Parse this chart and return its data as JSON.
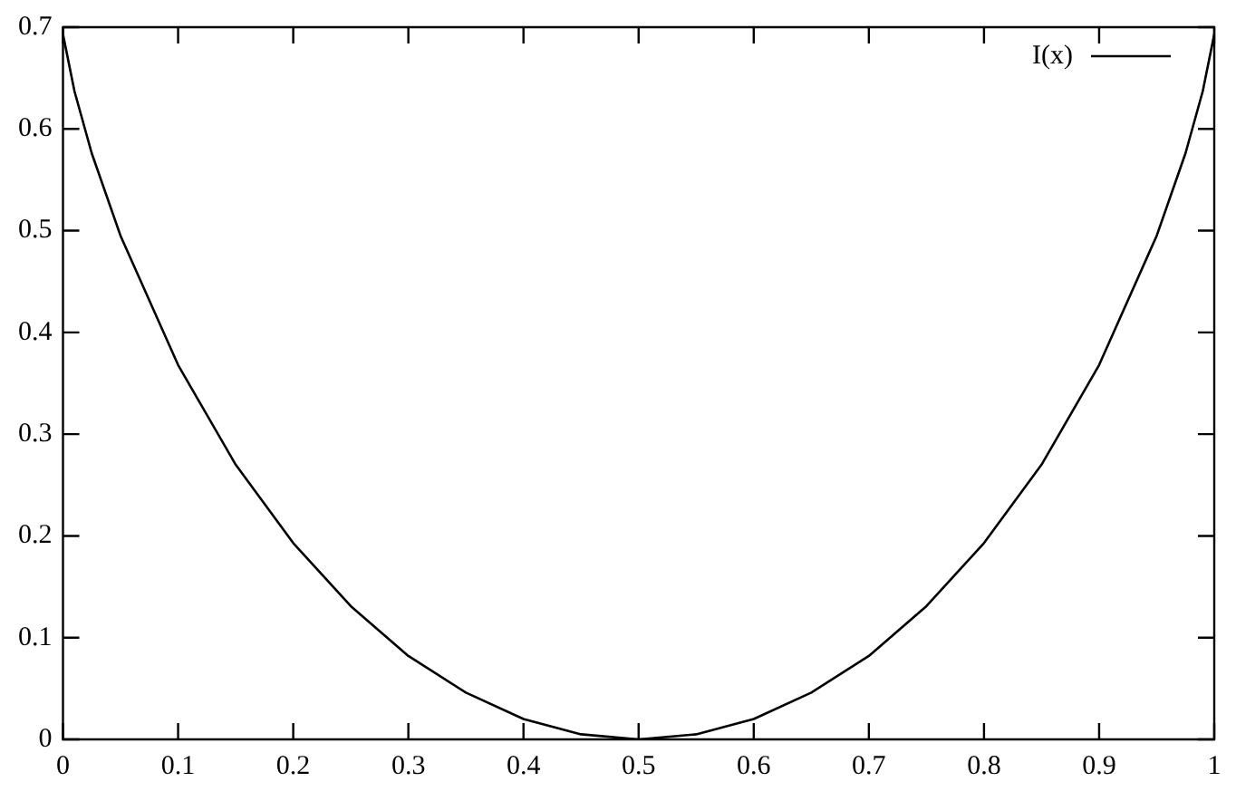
{
  "chart_data": {
    "type": "line",
    "x": [
      0,
      0.01,
      0.025,
      0.05,
      0.1,
      0.15,
      0.2,
      0.25,
      0.3,
      0.35,
      0.4,
      0.45,
      0.5,
      0.55,
      0.6,
      0.65,
      0.7,
      0.75,
      0.8,
      0.85,
      0.9,
      0.95,
      0.975,
      0.99,
      1
    ],
    "series": [
      {
        "name": "I(x)",
        "color": "#000000",
        "values": [
          0.693,
          0.637,
          0.576,
          0.495,
          0.368,
          0.27,
          0.193,
          0.131,
          0.082,
          0.046,
          0.02,
          0.005,
          0,
          0.005,
          0.02,
          0.046,
          0.082,
          0.131,
          0.193,
          0.27,
          0.368,
          0.495,
          0.576,
          0.637,
          0.693
        ]
      }
    ],
    "xlim": [
      0,
      1
    ],
    "xticks": [
      0,
      0.1,
      0.2,
      0.3,
      0.4,
      0.5,
      0.6,
      0.7,
      0.8,
      0.9,
      1
    ],
    "ylim": [
      0,
      0.7
    ],
    "yticks": [
      0,
      0.1,
      0.2,
      0.3,
      0.4,
      0.5,
      0.6,
      0.7
    ],
    "grid": false,
    "legend": "top right",
    "marker": "none",
    "line_style": "solid"
  }
}
